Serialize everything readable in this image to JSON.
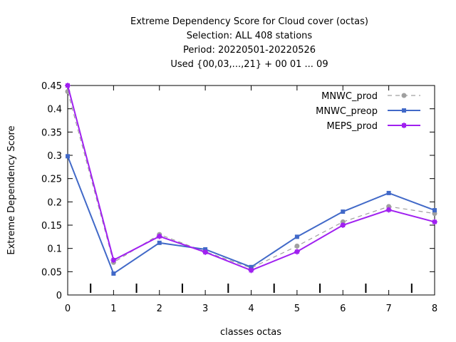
{
  "chart_data": {
    "type": "line",
    "title": [
      "Extreme Dependency Score  for Cloud cover (octas)",
      "Selection: ALL    408 stations",
      "Period: 20220501-20220526",
      "Used {00,03,...,21} + 00 01 ... 09"
    ],
    "xlabel": "classes octas",
    "ylabel": "Extreme Dependency Score",
    "x": [
      0,
      1,
      2,
      3,
      4,
      5,
      6,
      7,
      8
    ],
    "xlim": [
      0,
      8
    ],
    "ylim": [
      0,
      0.45
    ],
    "xticks": [
      "0",
      "1",
      "2",
      "3",
      "4",
      "5",
      "6",
      "7",
      "8"
    ],
    "yticks": [
      "0",
      "0.05",
      "0.1",
      "0.15",
      "0.2",
      "0.25",
      "0.3",
      "0.35",
      "0.4",
      "0.45"
    ],
    "grid": false,
    "legend_position": "top-right",
    "series": [
      {
        "name": "MNWC_prod",
        "color": "#a0a0a0",
        "dash": true,
        "values": [
          0.437,
          0.07,
          0.13,
          0.093,
          0.058,
          0.105,
          0.157,
          0.19,
          0.175
        ]
      },
      {
        "name": "MNWC_preop",
        "color": "#4169c8",
        "dash": false,
        "values": [
          0.298,
          0.046,
          0.112,
          0.098,
          0.06,
          0.125,
          0.179,
          0.219,
          0.182
        ]
      },
      {
        "name": "MEPS_prod",
        "color": "#a020f0",
        "dash": false,
        "values": [
          0.45,
          0.075,
          0.126,
          0.092,
          0.053,
          0.093,
          0.15,
          0.183,
          0.157
        ]
      }
    ]
  }
}
